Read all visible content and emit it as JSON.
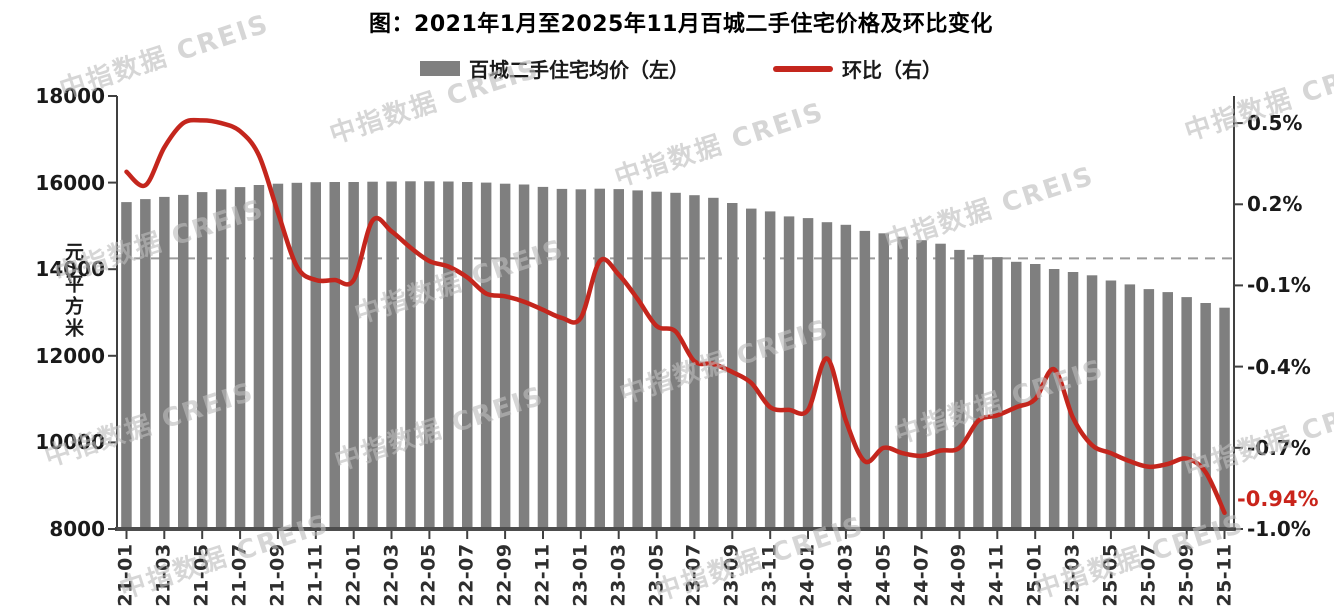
{
  "title": "图：2021年1月至2025年11月百城二手住宅价格及环比变化",
  "legend": {
    "bars_label": "百城二手住宅均价（左）",
    "line_label": "环比（右）"
  },
  "watermark_text": "中指数据 CREIS",
  "annotation": {
    "text": "-0.94%",
    "category": "25-11",
    "value": -0.94
  },
  "colors": {
    "bar": "#7f7f7f",
    "line": "#c4261d",
    "zero_line": "#9b9b9b",
    "axis": "#404040",
    "axis_bottom": "#4d4d4d",
    "annotation": "#c9241b"
  },
  "chart_data": {
    "type": "bar+line",
    "title": "图：2021年1月至2025年11月百城二手住宅价格及环比变化",
    "legend_position": "top",
    "grid": false,
    "categories": [
      "21-01",
      "21-02",
      "21-03",
      "21-04",
      "21-05",
      "21-06",
      "21-07",
      "21-08",
      "21-09",
      "21-10",
      "21-11",
      "21-12",
      "22-01",
      "22-02",
      "22-03",
      "22-04",
      "22-05",
      "22-06",
      "22-07",
      "22-08",
      "22-09",
      "22-10",
      "22-11",
      "22-12",
      "23-01",
      "23-02",
      "23-03",
      "23-04",
      "23-05",
      "23-06",
      "23-07",
      "23-08",
      "23-09",
      "23-10",
      "23-11",
      "23-12",
      "24-01",
      "24-02",
      "24-03",
      "24-04",
      "24-05",
      "24-06",
      "24-07",
      "24-08",
      "24-09",
      "24-10",
      "24-11",
      "24-12",
      "25-01",
      "25-02",
      "25-03",
      "25-04",
      "25-05",
      "25-06",
      "25-07",
      "25-08",
      "25-09",
      "25-10",
      "25-11"
    ],
    "x_tick_labels": [
      "21-01",
      "21-03",
      "21-05",
      "21-07",
      "21-09",
      "21-11",
      "22-01",
      "22-03",
      "22-05",
      "22-07",
      "22-09",
      "22-11",
      "23-01",
      "23-03",
      "23-05",
      "23-07",
      "23-09",
      "23-11",
      "24-01",
      "24-03",
      "24-05",
      "24-07",
      "24-09",
      "24-11",
      "25-01",
      "25-03",
      "25-05",
      "25-07",
      "25-09",
      "25-11"
    ],
    "series": [
      {
        "name": "百城二手住宅均价（左）",
        "type": "bar",
        "axis": "left",
        "unit": "元/平方米",
        "values": [
          15550,
          15620,
          15670,
          15715,
          15780,
          15845,
          15895,
          15945,
          15975,
          15995,
          16010,
          16015,
          16015,
          16020,
          16025,
          16030,
          16030,
          16025,
          16015,
          16000,
          15975,
          15955,
          15900,
          15855,
          15845,
          15860,
          15850,
          15820,
          15790,
          15765,
          15710,
          15650,
          15530,
          15400,
          15335,
          15220,
          15180,
          15085,
          15025,
          14885,
          14830,
          14750,
          14670,
          14590,
          14445,
          14330,
          14280,
          14170,
          14120,
          14005,
          13935,
          13860,
          13740,
          13650,
          13540,
          13470,
          13355,
          13220,
          13110
        ]
      },
      {
        "name": "环比（右）",
        "type": "line",
        "axis": "right",
        "unit": "%",
        "values": [
          0.32,
          0.27,
          0.41,
          0.5,
          0.51,
          0.5,
          0.47,
          0.38,
          0.17,
          -0.03,
          -0.08,
          -0.08,
          -0.08,
          0.14,
          0.1,
          0.04,
          -0.01,
          -0.03,
          -0.07,
          -0.13,
          -0.14,
          -0.16,
          -0.19,
          -0.22,
          -0.22,
          -0.01,
          -0.06,
          -0.15,
          -0.25,
          -0.27,
          -0.38,
          -0.39,
          -0.42,
          -0.46,
          -0.55,
          -0.56,
          -0.56,
          -0.37,
          -0.6,
          -0.75,
          -0.7,
          -0.72,
          -0.73,
          -0.71,
          -0.7,
          -0.6,
          -0.58,
          -0.55,
          -0.52,
          -0.41,
          -0.59,
          -0.69,
          -0.72,
          -0.75,
          -0.77,
          -0.76,
          -0.74,
          -0.79,
          -0.94
        ]
      }
    ],
    "left_axis": {
      "title": "元/平方米",
      "min": 8000,
      "max": 18000,
      "ticks": [
        18000,
        16000,
        14000,
        12000,
        10000,
        8000
      ],
      "tick_labels": [
        "18000",
        "16000",
        "14000",
        "12000",
        "10000",
        "8000"
      ]
    },
    "right_axis": {
      "min": -1.0,
      "max": 0.6,
      "ticks": [
        0.5,
        0.2,
        -0.1,
        -0.4,
        -0.7,
        -1.0
      ],
      "tick_labels": [
        "0.5%",
        "0.2%",
        "-0.1%",
        "-0.4%",
        "-0.7%",
        "-1.0%"
      ]
    },
    "zero_line": {
      "value": 0,
      "style": "dashed"
    }
  }
}
